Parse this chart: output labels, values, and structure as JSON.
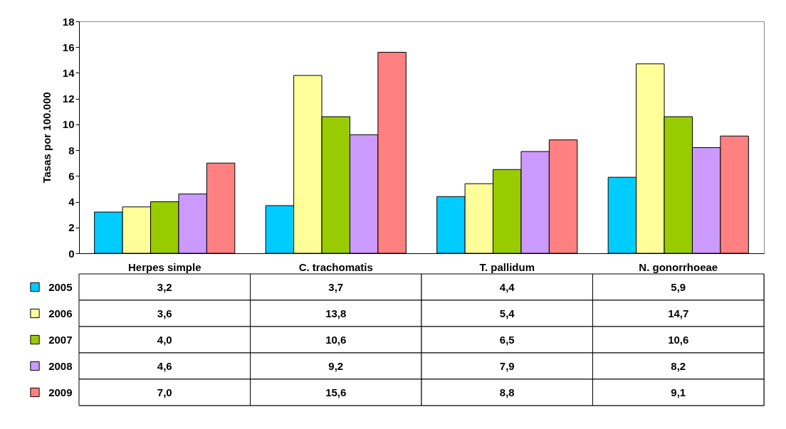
{
  "chart_data": {
    "type": "bar",
    "ylabel": "Tasas por 100.000",
    "categories": [
      "Herpes simple",
      "C. trachomatis",
      "T. pallidum",
      "N. gonorrhoeae"
    ],
    "series": [
      {
        "name": "2005",
        "color": "#00ccff",
        "values": [
          3.2,
          3.7,
          4.4,
          5.9
        ],
        "value_labels": [
          "3,2",
          "3,7",
          "4,4",
          "5,9"
        ]
      },
      {
        "name": "2006",
        "color": "#ffff99",
        "values": [
          3.6,
          13.8,
          5.4,
          14.7
        ],
        "value_labels": [
          "3,6",
          "13,8",
          "5,4",
          "14,7"
        ]
      },
      {
        "name": "2007",
        "color": "#99cc00",
        "values": [
          4.0,
          10.6,
          6.5,
          10.6
        ],
        "value_labels": [
          "4,0",
          "10,6",
          "6,5",
          "10,6"
        ]
      },
      {
        "name": "2008",
        "color": "#cc99ff",
        "values": [
          4.6,
          9.2,
          7.9,
          8.2
        ],
        "value_labels": [
          "4,6",
          "9,2",
          "7,9",
          "8,2"
        ]
      },
      {
        "name": "2009",
        "color": "#ff8080",
        "values": [
          7.0,
          15.6,
          8.8,
          9.1
        ],
        "value_labels": [
          "7,0",
          "15,6",
          "8,8",
          "9,1"
        ]
      }
    ],
    "ylim": [
      0,
      18
    ],
    "yticks": [
      0,
      2,
      4,
      6,
      8,
      10,
      12,
      14,
      16,
      18
    ],
    "legend": "bottom"
  }
}
